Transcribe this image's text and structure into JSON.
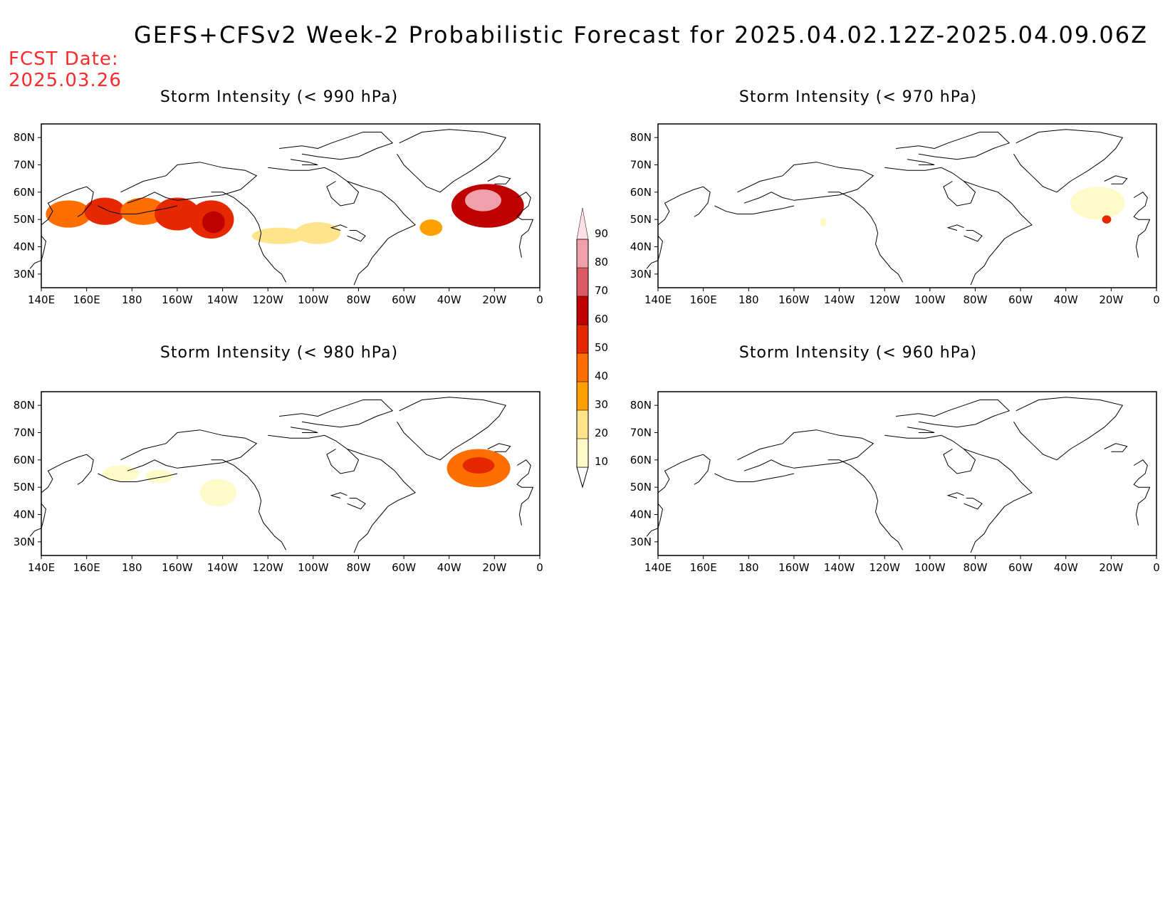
{
  "title": "GEFS+CFSv2 Week-2 Probabilistic Forecast for 2025.04.02.12Z-2025.04.09.06Z",
  "fcst_label": "FCST Date:",
  "fcst_date": "2025.03.26",
  "lon_ticks": [
    "140E",
    "160E",
    "180",
    "160W",
    "140W",
    "120W",
    "100W",
    "80W",
    "60W",
    "40W",
    "20W",
    "0"
  ],
  "lat_ticks": [
    "80N",
    "70N",
    "60N",
    "50N",
    "40N",
    "30N"
  ],
  "colorbar": {
    "levels": [
      10,
      20,
      30,
      40,
      50,
      60,
      70,
      80,
      90
    ],
    "colors": [
      "#fffac8",
      "#ffe48c",
      "#ffa000",
      "#ff6e00",
      "#e62800",
      "#be0000",
      "#dc5a64",
      "#f0a0aa",
      "#ffe0e6"
    ]
  },
  "panels": [
    {
      "id": "p990",
      "title": "Storm Intensity (< 990 hPa)",
      "blobs": [
        {
          "lon": 152,
          "lat": 52,
          "rx": 10,
          "ry": 5,
          "level": 40
        },
        {
          "lon": 168,
          "lat": 53,
          "rx": 9,
          "ry": 5,
          "level": 50
        },
        {
          "lon": 185,
          "lat": 53,
          "rx": 10,
          "ry": 5,
          "level": 40
        },
        {
          "lon": 200,
          "lat": 52,
          "rx": 10,
          "ry": 6,
          "level": 50
        },
        {
          "lon": 215,
          "lat": 50,
          "rx": 10,
          "ry": 7,
          "level": 50
        },
        {
          "lon": 216,
          "lat": 49,
          "rx": 5,
          "ry": 4,
          "level": 60
        },
        {
          "lon": 245,
          "lat": 44,
          "rx": 12,
          "ry": 3,
          "level": 20
        },
        {
          "lon": 262,
          "lat": 45,
          "rx": 10,
          "ry": 4,
          "level": 20
        },
        {
          "lon": 337,
          "lat": 55,
          "rx": 16,
          "ry": 8,
          "level": 60
        },
        {
          "lon": 335,
          "lat": 57,
          "rx": 8,
          "ry": 4,
          "level": 80
        },
        {
          "lon": 312,
          "lat": 47,
          "rx": 5,
          "ry": 3,
          "level": 30
        }
      ]
    },
    {
      "id": "p970",
      "title": "Storm Intensity (< 970 hPa)",
      "blobs": [
        {
          "lon": 334,
          "lat": 56,
          "rx": 12,
          "ry": 6,
          "level": 10
        },
        {
          "lon": 338,
          "lat": 50,
          "rx": 2,
          "ry": 1.5,
          "level": 50
        },
        {
          "lon": 213,
          "lat": 49,
          "rx": 1.5,
          "ry": 1.5,
          "level": 10
        }
      ]
    },
    {
      "id": "p980",
      "title": "Storm Intensity (< 980 hPa)",
      "blobs": [
        {
          "lon": 175,
          "lat": 55,
          "rx": 8,
          "ry": 3,
          "level": 10
        },
        {
          "lon": 218,
          "lat": 48,
          "rx": 8,
          "ry": 5,
          "level": 10
        },
        {
          "lon": 192,
          "lat": 54,
          "rx": 6,
          "ry": 2.5,
          "level": 10
        },
        {
          "lon": 333,
          "lat": 57,
          "rx": 14,
          "ry": 7,
          "level": 40
        },
        {
          "lon": 333,
          "lat": 58,
          "rx": 7,
          "ry": 3,
          "level": 50
        }
      ]
    },
    {
      "id": "p960",
      "title": "Storm Intensity (< 960 hPa)",
      "blobs": []
    }
  ]
}
